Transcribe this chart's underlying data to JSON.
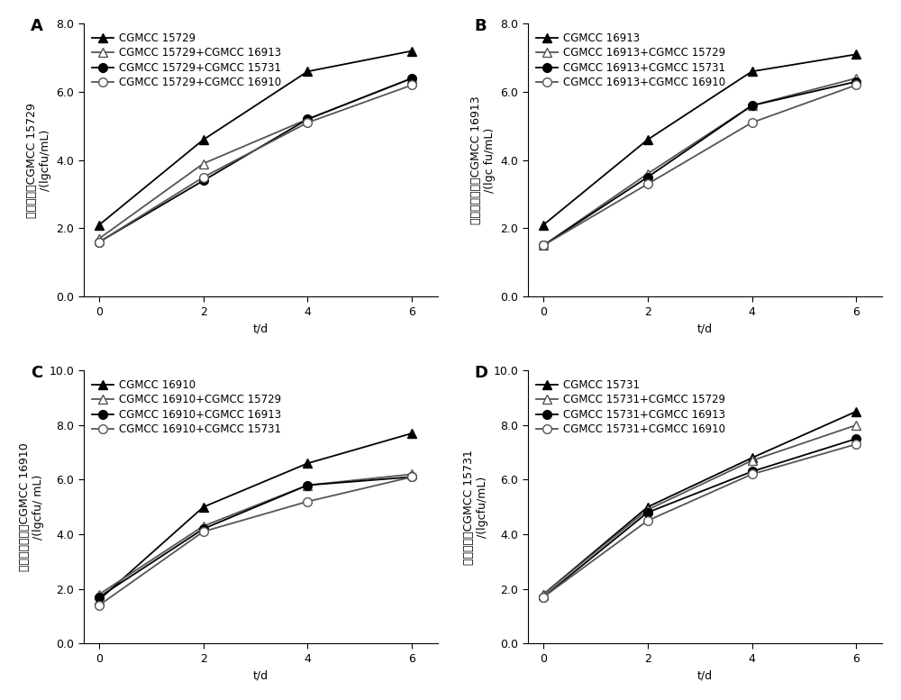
{
  "x": [
    0,
    2,
    4,
    6
  ],
  "panels": [
    {
      "label": "A",
      "ylabel_cn": "酿酒酵母菌CGMCC 15729",
      "ylabel_en": "/(lgcfu/mL)",
      "ylim": [
        0.0,
        8.0
      ],
      "yticks": [
        0.0,
        2.0,
        4.0,
        6.0,
        8.0
      ],
      "legend_entries": [
        "CGMCC 15729",
        "CGMCC 15729+CGMCC 16913",
        "CGMCC 15729+CGMCC 15731",
        "CGMCC 15729+CGMCC 16910"
      ],
      "series": [
        {
          "y": [
            2.1,
            4.6,
            6.6,
            7.2
          ],
          "marker": "^",
          "filled": true
        },
        {
          "y": [
            1.7,
            3.9,
            5.2,
            6.4
          ],
          "marker": "^",
          "filled": false
        },
        {
          "y": [
            1.6,
            3.4,
            5.2,
            6.4
          ],
          "marker": "o",
          "filled": true
        },
        {
          "y": [
            1.6,
            3.5,
            5.1,
            6.2
          ],
          "marker": "o",
          "filled": false
        }
      ]
    },
    {
      "label": "B",
      "ylabel_cn": "葡萄假丝酵母菌CGMCC 16913",
      "ylabel_en": "/(lgc fu/mL)",
      "ylim": [
        0.0,
        8.0
      ],
      "yticks": [
        0.0,
        2.0,
        4.0,
        6.0,
        8.0
      ],
      "legend_entries": [
        "CGMCC 16913",
        "CGMCC 16913+CGMCC 15729",
        "CGMCC 16913+CGMCC 15731",
        "CGMCC 16913+CGMCC 16910"
      ],
      "series": [
        {
          "y": [
            2.1,
            4.6,
            6.6,
            7.1
          ],
          "marker": "^",
          "filled": true
        },
        {
          "y": [
            1.5,
            3.6,
            5.6,
            6.4
          ],
          "marker": "^",
          "filled": false
        },
        {
          "y": [
            1.5,
            3.5,
            5.6,
            6.3
          ],
          "marker": "o",
          "filled": true
        },
        {
          "y": [
            1.5,
            3.3,
            5.1,
            6.2
          ],
          "marker": "o",
          "filled": false
        }
      ]
    },
    {
      "label": "C",
      "ylabel_cn": "黑海威芽孢杆菌CGMCC 16910",
      "ylabel_en": "/(lgcfu/ mL)",
      "ylim": [
        0.0,
        10.0
      ],
      "yticks": [
        0.0,
        2.0,
        4.0,
        6.0,
        8.0,
        10.0
      ],
      "legend_entries": [
        "CGMCC 16910",
        "CGMCC 16910+CGMCC 15729",
        "CGMCC 16910+CGMCC 16913",
        "CGMCC 16910+CGMCC 15731"
      ],
      "series": [
        {
          "y": [
            1.6,
            5.0,
            6.6,
            7.7
          ],
          "marker": "^",
          "filled": true
        },
        {
          "y": [
            1.8,
            4.3,
            5.8,
            6.2
          ],
          "marker": "^",
          "filled": false
        },
        {
          "y": [
            1.7,
            4.2,
            5.8,
            6.1
          ],
          "marker": "o",
          "filled": true
        },
        {
          "y": [
            1.4,
            4.1,
            5.2,
            6.1
          ],
          "marker": "o",
          "filled": false
        }
      ]
    },
    {
      "label": "D",
      "ylabel_cn": "植物乳杆菌CGMCC 15731",
      "ylabel_en": "/(lgcfu/mL)",
      "ylim": [
        0.0,
        10.0
      ],
      "yticks": [
        0.0,
        2.0,
        4.0,
        6.0,
        8.0,
        10.0
      ],
      "legend_entries": [
        "CGMCC 15731",
        "CGMCC 15731+CGMCC 15729",
        "CGMCC 15731+CGMCC 16913",
        "CGMCC 15731+CGMCC 16910"
      ],
      "series": [
        {
          "y": [
            1.8,
            5.0,
            6.8,
            8.5
          ],
          "marker": "^",
          "filled": true
        },
        {
          "y": [
            1.8,
            4.9,
            6.7,
            8.0
          ],
          "marker": "^",
          "filled": false
        },
        {
          "y": [
            1.7,
            4.8,
            6.3,
            7.5
          ],
          "marker": "o",
          "filled": true
        },
        {
          "y": [
            1.7,
            4.5,
            6.2,
            7.3
          ],
          "marker": "o",
          "filled": false
        }
      ]
    }
  ],
  "line_color": "#000000",
  "line_color_gray": "#555555",
  "xlabel": "t/d",
  "fontsize_label": 9,
  "fontsize_tick": 9,
  "fontsize_legend": 8.5,
  "marker_size": 7,
  "line_width": 1.3
}
